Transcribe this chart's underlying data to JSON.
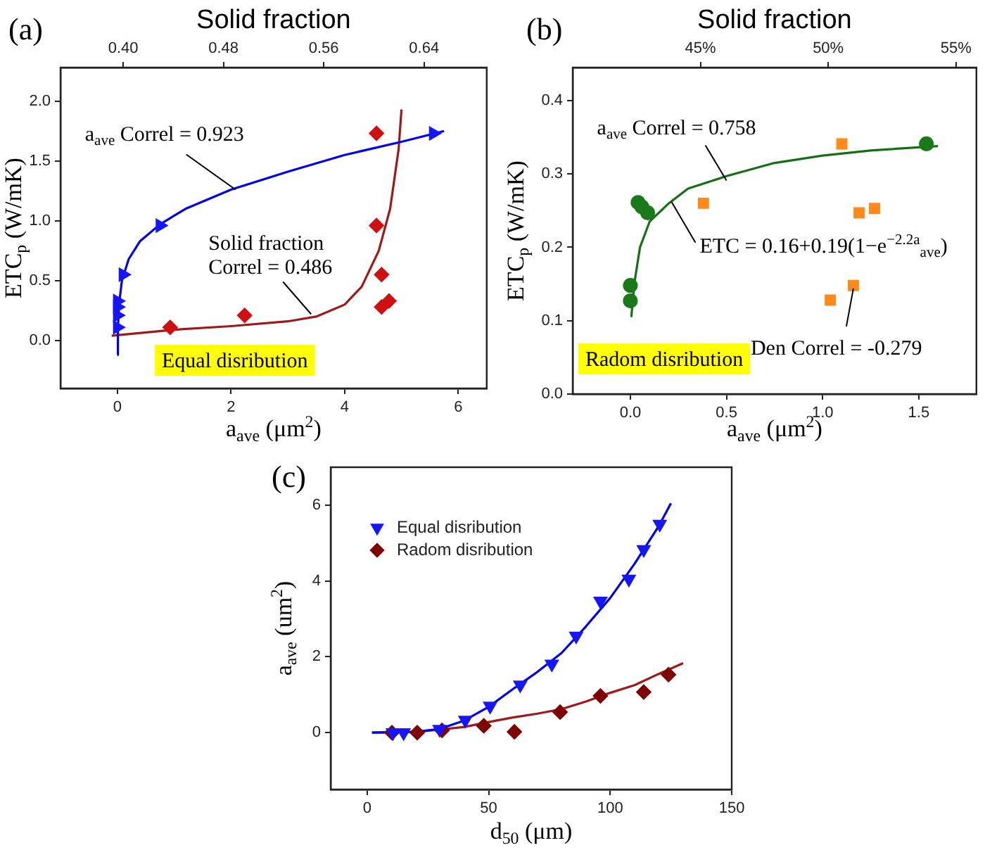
{
  "chart_data": [
    {
      "type": "scatter",
      "title": "(a)",
      "x2label": "Solid fraction",
      "xlabel": "a$_{ave}$ (μm$^{2}$)",
      "ylabel": "ETC$_{p}$ (W/mK)",
      "grid": false,
      "xlim": [
        -1,
        6.5
      ],
      "xticks": [
        0,
        2,
        4,
        6
      ],
      "ylim": [
        -0.4,
        2.28
      ],
      "yticks": [
        {
          "value": 0,
          "label": "0.0"
        },
        0.5,
        {
          "value": 1,
          "label": "1.0"
        },
        1.5,
        {
          "value": 2,
          "label": "2.0"
        }
      ],
      "x2lim": [
        0.35,
        0.69
      ],
      "x2ticks": [
        {
          "value": 0.4,
          "label": "0.40"
        },
        0.48,
        0.56,
        0.64
      ],
      "series": [
        {
          "type": "scatter",
          "marker": "triangle",
          "color": "#1515ff",
          "x": [
            0,
            0,
            0,
            0,
            0.1,
            0.75,
            5.56
          ],
          "values": [
            0.11,
            0.21,
            0.28,
            0.33,
            0.55,
            0.96,
            1.73
          ]
        },
        {
          "type": "scatter",
          "marker": "diamond",
          "color": "#d01010",
          "x": [
            0.93,
            2.24,
            4.56,
            4.56,
            4.65,
            4.65,
            4.78
          ],
          "values": [
            0.11,
            0.21,
            1.73,
            0.96,
            0.55,
            0.28,
            0.33
          ]
        },
        {
          "type": "line",
          "marker": "none",
          "color": "#0000ee",
          "x": [
            0,
            0.01,
            0.03,
            0.08,
            0.2,
            0.4,
            0.75,
            1.2,
            2,
            3,
            4,
            5,
            5.75
          ],
          "values": [
            -0.12,
            0.1,
            0.3,
            0.5,
            0.68,
            0.83,
            0.97,
            1.1,
            1.26,
            1.41,
            1.55,
            1.66,
            1.75
          ]
        },
        {
          "type": "line",
          "marker": "none",
          "color": "#a01818",
          "x": [
            -0.1,
            1,
            2,
            3,
            3.5,
            4,
            4.3,
            4.6,
            4.8,
            4.95,
            5
          ],
          "values": [
            0.04,
            0.09,
            0.12,
            0.16,
            0.2,
            0.3,
            0.45,
            0.75,
            1.1,
            1.6,
            1.93
          ]
        }
      ],
      "annotations": [
        {
          "text": "a$_{ave}$ Correl = 0.923",
          "x": 2.08,
          "y": 1.26
        },
        {
          "text": "Solid fraction Correl = 0.486",
          "x": 3.41,
          "y": 0.22
        },
        "Equal disribution"
      ]
    },
    {
      "type": "scatter",
      "title": "(b)",
      "x2label": "Solid fraction",
      "xlabel": "a$_{ave}$ (μm$^{2}$)",
      "ylabel": "ETC$_{p}$ (W/mK)",
      "grid": false,
      "xlim": [
        -0.3,
        1.8
      ],
      "xticks": [
        {
          "value": 0,
          "label": "0.0"
        },
        0.5,
        {
          "value": 1,
          "label": "1.0"
        },
        1.5
      ],
      "ylim": [
        0,
        0.445
      ],
      "yticks": [
        {
          "value": 0,
          "label": "0.0"
        },
        0.1,
        0.2,
        0.3,
        0.4
      ],
      "x2lim": [
        40,
        55.8
      ],
      "x2ticks": [
        {
          "value": 45,
          "label": "45%"
        },
        {
          "value": 50,
          "label": "50%"
        },
        {
          "value": 55,
          "label": "55%"
        }
      ],
      "series": [
        {
          "type": "scatter",
          "marker": "circle",
          "color": "#1a7a1a",
          "x": [
            0,
            0,
            0.04,
            0.06,
            0.09,
            1.54
          ],
          "values": [
            0.148,
            0.127,
            0.261,
            0.255,
            0.247,
            0.341
          ]
        },
        {
          "type": "scatter",
          "marker": "square",
          "color": "#ff8a1a",
          "x": [
            0.38,
            1.1,
            1.04,
            1.16,
            1.19,
            1.27
          ],
          "values": [
            0.26,
            0.341,
            0.128,
            0.148,
            0.247,
            0.253
          ]
        },
        {
          "type": "line",
          "marker": "none",
          "color": "#157015",
          "x": [
            0.005,
            0.02,
            0.05,
            0.1,
            0.2,
            0.3,
            0.5,
            0.75,
            1,
            1.25,
            1.6
          ],
          "values": [
            0.105,
            0.15,
            0.2,
            0.235,
            0.26,
            0.28,
            0.297,
            0.315,
            0.325,
            0.332,
            0.338
          ]
        }
      ],
      "annotations": [
        {
          "text": "a$_{ave}$ Correl = 0.758",
          "x": 0.5,
          "y": 0.291
        },
        {
          "text": "ETC = 0.16+0.19(1−e$^{−2.2a}$$_{ave}$)",
          "x": 0.214,
          "y": 0.262
        },
        {
          "text": "Den Correl = -0.279",
          "x": 1.16,
          "y": 0.144
        },
        "Radom disribution"
      ]
    },
    {
      "type": "scatter",
      "title": "(c)",
      "xlabel": "d$_{50}$ (μm)",
      "ylabel": "a$_{ave}$ (um$^{2}$)",
      "grid": false,
      "legend": "top left",
      "xlim": [
        -15,
        150
      ],
      "xticks": [
        0,
        50,
        100,
        150
      ],
      "ylim": [
        -1.5,
        7
      ],
      "yticks": [
        0,
        2,
        4,
        6
      ],
      "series": [
        {
          "type": "scatter",
          "name": "Equal disribution",
          "marker": "triangle",
          "color": "#1515ff",
          "x": [
            10.6,
            15,
            29.8,
            40.4,
            50.6,
            63,
            76,
            86,
            96,
            107.7,
            113.8,
            120.4
          ],
          "values": [
            0,
            0,
            0.09,
            0.33,
            0.7,
            1.26,
            1.81,
            2.55,
            3.47,
            4.05,
            4.83,
            5.5
          ]
        },
        {
          "type": "scatter",
          "name": "Radom disribution",
          "marker": "diamond",
          "color": "#800000",
          "x": [
            10.2,
            20.6,
            30.8,
            48,
            60.6,
            79.4,
            96,
            113.8,
            124
          ],
          "values": [
            0,
            0,
            0.06,
            0.18,
            0.02,
            0.54,
            0.97,
            1.07,
            1.53
          ]
        },
        {
          "type": "line",
          "marker": "none",
          "color": "#0000ee",
          "x": [
            2,
            20,
            30,
            40,
            50,
            60,
            70,
            80,
            90,
            100,
            110,
            120,
            125
          ],
          "values": [
            0,
            0.02,
            0.1,
            0.32,
            0.68,
            1.15,
            1.6,
            2.1,
            2.8,
            3.55,
            4.45,
            5.45,
            6.05
          ]
        },
        {
          "type": "line",
          "marker": "none",
          "color": "#a01818",
          "x": [
            2,
            20,
            30,
            40,
            50,
            60,
            70,
            80,
            90,
            100,
            110,
            120,
            130
          ],
          "values": [
            0,
            0.02,
            0.08,
            0.15,
            0.28,
            0.4,
            0.5,
            0.62,
            0.82,
            1.05,
            1.25,
            1.55,
            1.83
          ]
        }
      ]
    }
  ]
}
